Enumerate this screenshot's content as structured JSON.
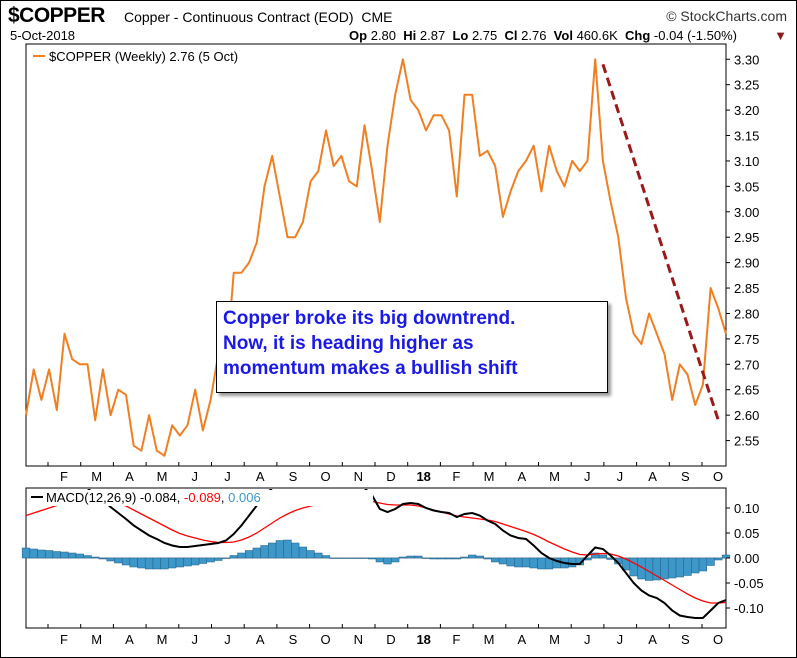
{
  "header": {
    "symbol": "$COPPER",
    "description": "Copper - Continuous Contract (EOD)",
    "exchange": "CME",
    "brand": "© StockCharts.com",
    "date": "5-Oct-2018",
    "open_label": "Op",
    "open": "2.80",
    "high_label": "Hi",
    "high": "2.87",
    "low_label": "Lo",
    "low": "2.75",
    "close_label": "Cl",
    "close": "2.76",
    "vol_label": "Vol",
    "vol": "460.6K",
    "chg_label": "Chg",
    "chg": "-0.04 (-1.50%)",
    "chg_marker": "▼"
  },
  "annotation": {
    "line1": "Copper broke its big downtrend.",
    "line2": "Now, it is heading higher as",
    "line3": "momentum makes a bullish shift"
  },
  "colors": {
    "price": "#f07f22",
    "macd": "#000000",
    "signal": "#ff0000",
    "histogram": "#3d97c9",
    "trendline": "#9a1a1a",
    "annotation_text": "#1a1ae6"
  },
  "chart_data": [
    {
      "type": "line",
      "legend": "$COPPER (Weekly) 2.76 (5 Oct)",
      "series": [
        {
          "name": "$COPPER (Weekly)",
          "values": [
            2.6,
            2.69,
            2.63,
            2.69,
            2.61,
            2.76,
            2.71,
            2.7,
            2.7,
            2.59,
            2.69,
            2.6,
            2.65,
            2.64,
            2.54,
            2.53,
            2.6,
            2.53,
            2.52,
            2.58,
            2.56,
            2.58,
            2.65,
            2.57,
            2.63,
            2.72,
            2.69,
            2.88,
            2.88,
            2.9,
            2.94,
            3.05,
            3.11,
            3.03,
            2.95,
            2.95,
            2.98,
            3.06,
            3.08,
            3.16,
            3.09,
            3.11,
            3.06,
            3.05,
            3.17,
            3.08,
            2.98,
            3.13,
            3.23,
            3.3,
            3.22,
            3.2,
            3.16,
            3.19,
            3.19,
            3.16,
            3.03,
            3.23,
            3.23,
            3.11,
            3.12,
            3.09,
            2.99,
            3.04,
            3.08,
            3.1,
            3.13,
            3.04,
            3.13,
            3.08,
            3.05,
            3.1,
            3.08,
            3.1,
            3.3,
            3.1,
            3.02,
            2.95,
            2.83,
            2.76,
            2.74,
            2.8,
            2.76,
            2.72,
            2.63,
            2.7,
            2.68,
            2.62,
            2.66,
            2.85,
            2.81,
            2.76
          ]
        }
      ],
      "trendline": {
        "from_index": 75,
        "from_value": 3.29,
        "to_index": 90,
        "to_value": 2.59
      },
      "ylim": [
        2.5,
        3.33
      ],
      "y_ticks": [
        "3.30",
        "3.25",
        "3.20",
        "3.15",
        "3.10",
        "3.05",
        "3.00",
        "2.95",
        "2.90",
        "2.85",
        "2.80",
        "2.75",
        "2.70",
        "2.65",
        "2.60",
        "2.55"
      ],
      "x_tick_labels": [
        "F",
        "M",
        "A",
        "M",
        "J",
        "J",
        "A",
        "S",
        "O",
        "N",
        "D",
        "18",
        "F",
        "M",
        "A",
        "M",
        "J",
        "J",
        "A",
        "S",
        "O"
      ],
      "grid": false
    },
    {
      "type": "line",
      "legend": {
        "label": "MACD(12,26,9)",
        "macd": "-0.084",
        "signal": "-0.089",
        "histogram": "0.006"
      },
      "series": [
        {
          "name": "MACD",
          "values": [
            0.14,
            0.14,
            0.14,
            0.14,
            0.14,
            0.14,
            0.14,
            0.14,
            0.14,
            0.125,
            0.115,
            0.102,
            0.09,
            0.078,
            0.065,
            0.055,
            0.045,
            0.038,
            0.03,
            0.025,
            0.022,
            0.022,
            0.024,
            0.026,
            0.028,
            0.03,
            0.035,
            0.048,
            0.065,
            0.085,
            0.105,
            0.125,
            0.14,
            0.14,
            0.14,
            0.14,
            0.14,
            0.14,
            0.14,
            0.14,
            0.14,
            0.14,
            0.14,
            0.14,
            0.14,
            0.125,
            0.098,
            0.092,
            0.098,
            0.108,
            0.11,
            0.108,
            0.1,
            0.095,
            0.092,
            0.09,
            0.082,
            0.088,
            0.09,
            0.085,
            0.075,
            0.068,
            0.055,
            0.045,
            0.04,
            0.038,
            0.025,
            0.01,
            0.0,
            -0.006,
            -0.01,
            -0.012,
            -0.012,
            0.005,
            0.021,
            0.018,
            0.005,
            -0.01,
            -0.03,
            -0.05,
            -0.065,
            -0.075,
            -0.08,
            -0.09,
            -0.105,
            -0.115,
            -0.118,
            -0.12,
            -0.12,
            -0.105,
            -0.09,
            -0.084
          ]
        },
        {
          "name": "Signal",
          "values": [
            0.085,
            0.09,
            0.095,
            0.1,
            0.105,
            0.11,
            0.115,
            0.118,
            0.12,
            0.12,
            0.118,
            0.115,
            0.11,
            0.104,
            0.096,
            0.088,
            0.08,
            0.072,
            0.064,
            0.056,
            0.049,
            0.044,
            0.04,
            0.036,
            0.033,
            0.031,
            0.031,
            0.032,
            0.036,
            0.042,
            0.05,
            0.06,
            0.07,
            0.08,
            0.088,
            0.095,
            0.1,
            0.104,
            0.107,
            0.108,
            0.109,
            0.11,
            0.111,
            0.112,
            0.113,
            0.113,
            0.11,
            0.107,
            0.106,
            0.106,
            0.106,
            0.104,
            0.1,
            0.096,
            0.092,
            0.088,
            0.084,
            0.082,
            0.08,
            0.078,
            0.076,
            0.073,
            0.068,
            0.063,
            0.058,
            0.053,
            0.047,
            0.04,
            0.032,
            0.025,
            0.018,
            0.012,
            0.007,
            0.006,
            0.008,
            0.009,
            0.008,
            0.004,
            -0.002,
            -0.01,
            -0.018,
            -0.027,
            -0.036,
            -0.045,
            -0.054,
            -0.063,
            -0.072,
            -0.08,
            -0.086,
            -0.09,
            -0.09,
            -0.089
          ]
        },
        {
          "name": "Histogram",
          "values": [
            0.02,
            0.018,
            0.016,
            0.015,
            0.013,
            0.012,
            0.01,
            0.008,
            0.005,
            0.002,
            -0.002,
            -0.006,
            -0.01,
            -0.014,
            -0.018,
            -0.02,
            -0.022,
            -0.022,
            -0.022,
            -0.02,
            -0.018,
            -0.016,
            -0.014,
            -0.011,
            -0.008,
            -0.005,
            0.0,
            0.005,
            0.01,
            0.015,
            0.02,
            0.025,
            0.03,
            0.035,
            0.036,
            0.03,
            0.022,
            0.015,
            0.01,
            0.005,
            0.0,
            0.0,
            0.0,
            0.0,
            0.0,
            -0.002,
            -0.008,
            -0.012,
            -0.008,
            0.002,
            0.004,
            0.004,
            0.0,
            -0.002,
            -0.002,
            -0.002,
            -0.002,
            0.002,
            0.006,
            0.004,
            -0.002,
            -0.008,
            -0.012,
            -0.016,
            -0.018,
            -0.018,
            -0.02,
            -0.022,
            -0.022,
            -0.02,
            -0.02,
            -0.018,
            -0.014,
            -0.004,
            0.01,
            0.006,
            -0.003,
            -0.012,
            -0.024,
            -0.036,
            -0.042,
            -0.045,
            -0.044,
            -0.042,
            -0.04,
            -0.038,
            -0.035,
            -0.03,
            -0.026,
            -0.015,
            -0.004,
            0.006
          ]
        }
      ],
      "ylim": [
        -0.14,
        0.14
      ],
      "y_ticks": [
        "0.10",
        "0.05",
        "0.00",
        "-0.05",
        "-0.10"
      ],
      "x_tick_labels": [
        "F",
        "M",
        "A",
        "M",
        "J",
        "J",
        "A",
        "S",
        "O",
        "N",
        "D",
        "18",
        "F",
        "M",
        "A",
        "M",
        "J",
        "J",
        "A",
        "S",
        "O"
      ],
      "grid": false
    }
  ]
}
